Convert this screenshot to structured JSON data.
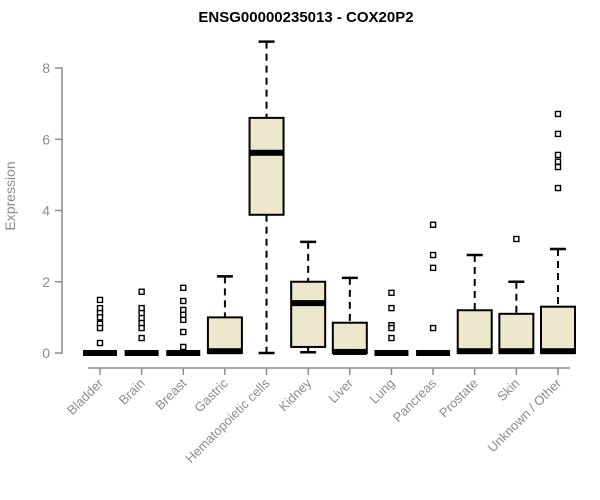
{
  "chart_data": {
    "type": "box",
    "title": "ENSG00000235013 - COX20P2",
    "ylabel": "Expression",
    "xlabel": "",
    "ylim": [
      0,
      8.8
    ],
    "yticks": [
      0,
      2,
      4,
      6,
      8
    ],
    "grid": false,
    "legend": "none",
    "box_fill": "#EDE8CD",
    "box_stroke": "#000000",
    "axis_color": "#8C8C8C",
    "title_color": "#000000",
    "categories": [
      "Bladder",
      "Brain",
      "Breast",
      "Gastric",
      "Hematopoietic cells",
      "Kidney",
      "Liver",
      "Lung",
      "Pancreas",
      "Prostate",
      "Skin",
      "Unknown / Other"
    ],
    "series": [
      {
        "label": "Bladder",
        "min": 0,
        "q1": 0,
        "median": 0,
        "q3": 0,
        "max": 0,
        "outliers": [
          1.49,
          1.26,
          1.12,
          1.0,
          0.82,
          0.7,
          0.28
        ]
      },
      {
        "label": "Brain",
        "min": 0,
        "q1": 0,
        "median": 0,
        "q3": 0,
        "max": 0,
        "outliers": [
          1.72,
          1.26,
          1.12,
          0.98,
          0.84,
          0.7,
          0.42
        ]
      },
      {
        "label": "Breast",
        "min": 0,
        "q1": 0,
        "median": 0,
        "q3": 0,
        "max": 0,
        "outliers": [
          1.83,
          1.46,
          1.21,
          1.07,
          0.93,
          0.59,
          0.17
        ]
      },
      {
        "label": "Gastric",
        "min": 0,
        "q1": 0,
        "median": 0.05,
        "q3": 1.0,
        "max": 2.15,
        "outliers": []
      },
      {
        "label": "Hematopoietic cells",
        "min": 0,
        "q1": 3.88,
        "median": 5.62,
        "q3": 6.6,
        "max": 8.74,
        "outliers": []
      },
      {
        "label": "Kidney",
        "min": 0.02,
        "q1": 0.17,
        "median": 1.4,
        "q3": 2.0,
        "max": 3.12,
        "outliers": []
      },
      {
        "label": "Liver",
        "min": 0,
        "q1": 0,
        "median": 0.03,
        "q3": 0.85,
        "max": 2.11,
        "outliers": []
      },
      {
        "label": "Lung",
        "min": 0,
        "q1": 0,
        "median": 0,
        "q3": 0,
        "max": 0,
        "outliers": [
          1.69,
          1.26,
          0.78,
          0.7,
          0.42
        ]
      },
      {
        "label": "Pancreas",
        "min": 0,
        "q1": 0,
        "median": 0,
        "q3": 0,
        "max": 0,
        "outliers": [
          3.6,
          2.75,
          2.39,
          0.7
        ]
      },
      {
        "label": "Prostate",
        "min": 0,
        "q1": 0,
        "median": 0.05,
        "q3": 1.2,
        "max": 2.75,
        "outliers": []
      },
      {
        "label": "Skin",
        "min": 0,
        "q1": 0,
        "median": 0.05,
        "q3": 1.1,
        "max": 2.0,
        "outliers": [
          3.2
        ]
      },
      {
        "label": "Unknown / Other",
        "min": 0,
        "q1": 0,
        "median": 0.05,
        "q3": 1.3,
        "max": 2.92,
        "outliers": [
          6.71,
          6.15,
          5.56,
          5.37,
          5.22,
          4.63
        ]
      }
    ]
  }
}
